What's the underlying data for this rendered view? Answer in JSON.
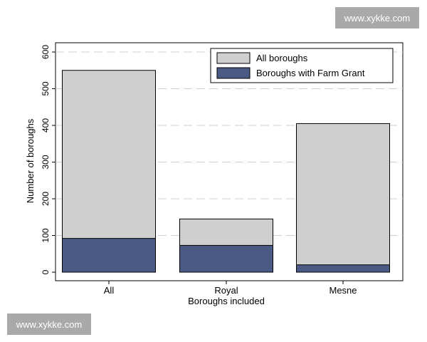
{
  "watermark": {
    "top_text": "www.xykke.com",
    "bottom_text": "www.xykke.com"
  },
  "colors": {
    "all_boroughs": "#cfcfcf",
    "farm_grant": "#4a5a85",
    "grid": "#d0d0d0"
  },
  "chart_data": {
    "type": "bar",
    "title": "",
    "xlabel": "Boroughs included",
    "ylabel": "Number of boroughs",
    "categories": [
      "All",
      "Royal",
      "Mesne"
    ],
    "series": [
      {
        "name": "All boroughs",
        "values": [
          550,
          145,
          405
        ],
        "color": "#cfcfcf"
      },
      {
        "name": "Boroughs with Farm Grant",
        "values": [
          92,
          73,
          20
        ],
        "color": "#4a5a85"
      }
    ],
    "ylim": [
      0,
      600
    ],
    "yticks": [
      0,
      100,
      200,
      300,
      400,
      500,
      600
    ],
    "grid": true,
    "legend_position": "top-right",
    "bars_overlaid": true
  }
}
